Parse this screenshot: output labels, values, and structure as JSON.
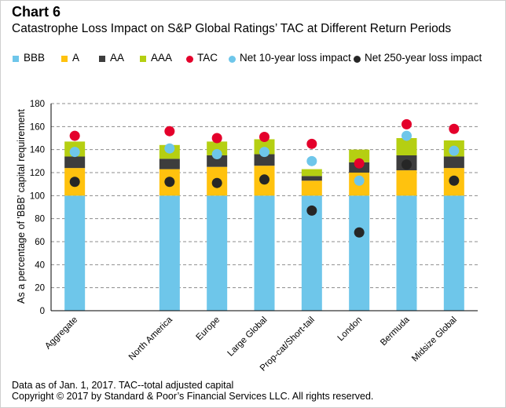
{
  "header": {
    "chart_number": "Chart 6",
    "title": "Catastrophe Loss Impact on S&P Global Ratings’ TAC at Different Return Periods"
  },
  "footer": {
    "note": "Data as of Jan. 1, 2017. TAC--total adjusted capital",
    "copyright": "Copyright © 2017 by Standard & Poor’s Financial Services LLC. All rights reserved."
  },
  "colors": {
    "BBB": "#6ec6ea",
    "A": "#ffc20e",
    "AA": "#3d3d3d",
    "AAA": "#b5cf12",
    "TAC": "#e4002b",
    "Net 10-year loss impact": "#6ec6ea",
    "Net 250-year loss impact": "#262626"
  },
  "legend": [
    {
      "key": "BBB",
      "label": "BBB",
      "kind": "square"
    },
    {
      "key": "A",
      "label": "A",
      "kind": "square"
    },
    {
      "key": "AA",
      "label": "AA",
      "kind": "square"
    },
    {
      "key": "AAA",
      "label": "AAA",
      "kind": "square"
    },
    {
      "key": "TAC",
      "label": "TAC",
      "kind": "dot"
    },
    {
      "key": "Net 10-year loss impact",
      "label": "Net 10-year loss impact",
      "kind": "dot"
    },
    {
      "key": "Net 250-year loss impact",
      "label": "Net 250-year loss impact",
      "kind": "dot"
    }
  ],
  "chart_data": {
    "type": "bar",
    "stacked": true,
    "ylabel": "As a percentage of 'BBB' capital requirement",
    "xlabel": "",
    "ylim": [
      0,
      180
    ],
    "ytick_step": 20,
    "grid": true,
    "legend_position": "top",
    "categories": [
      "Aggregate",
      "",
      "North America",
      "Europe",
      "Large Global",
      "Prop-cat/Short-tail",
      "London",
      "Bermuda",
      "Midsize Global"
    ],
    "series": [
      {
        "name": "BBB",
        "kind": "bar",
        "values": [
          100,
          null,
          100,
          100,
          100,
          100,
          100,
          100,
          100
        ]
      },
      {
        "name": "A",
        "kind": "bar",
        "values": [
          24,
          null,
          23,
          25,
          26,
          13,
          20,
          22,
          24
        ]
      },
      {
        "name": "AA",
        "kind": "bar",
        "values": [
          10,
          null,
          9,
          10,
          10,
          4,
          9,
          13,
          10
        ]
      },
      {
        "name": "AAA",
        "kind": "bar",
        "values": [
          13,
          null,
          12,
          12,
          13,
          6,
          11,
          15,
          14
        ]
      },
      {
        "name": "TAC",
        "kind": "marker",
        "values": [
          152,
          null,
          156,
          150,
          151,
          145,
          128,
          162,
          158
        ]
      },
      {
        "name": "Net 10-year loss impact",
        "kind": "marker",
        "values": [
          138,
          null,
          141,
          136,
          138,
          130,
          113,
          152,
          139
        ]
      },
      {
        "name": "Net 250-year loss impact",
        "kind": "marker",
        "values": [
          112,
          null,
          112,
          111,
          114,
          87,
          68,
          127,
          113
        ]
      }
    ]
  }
}
